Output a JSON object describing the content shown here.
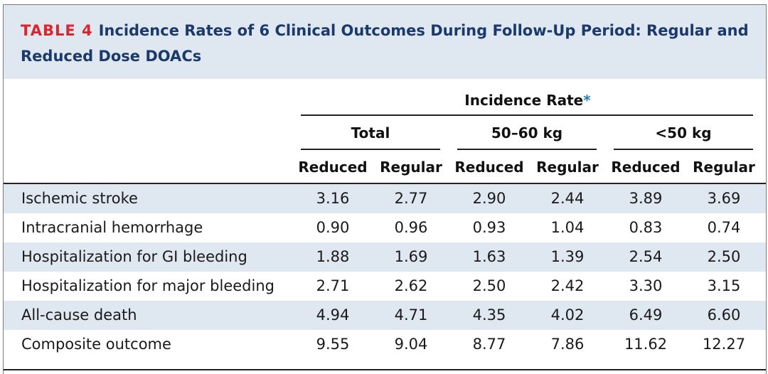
{
  "table": {
    "label": "TABLE 4",
    "title": "Incidence Rates of 6 Clinical Outcomes During Follow-Up Period: Regular and Reduced Dose DOACs",
    "group_header": "Incidence Rate",
    "group_marker": "*",
    "subgroups": [
      "Total",
      "50–60 kg",
      "<50 kg"
    ],
    "columns": [
      "Reduced",
      "Regular",
      "Reduced",
      "Regular",
      "Reduced",
      "Regular"
    ],
    "rows": [
      {
        "label": "Ischemic stroke",
        "values": [
          "3.16",
          "2.77",
          "2.90",
          "2.44",
          "3.89",
          "3.69"
        ]
      },
      {
        "label": "Intracranial hemorrhage",
        "values": [
          "0.90",
          "0.96",
          "0.93",
          "1.04",
          "0.83",
          "0.74"
        ]
      },
      {
        "label": "Hospitalization for GI bleeding",
        "values": [
          "1.88",
          "1.69",
          "1.63",
          "1.39",
          "2.54",
          "2.50"
        ]
      },
      {
        "label": "Hospitalization for major bleeding",
        "values": [
          "2.71",
          "2.62",
          "2.50",
          "2.42",
          "3.30",
          "3.15"
        ]
      },
      {
        "label": "All-cause death",
        "values": [
          "4.94",
          "4.71",
          "4.35",
          "4.02",
          "6.49",
          "6.60"
        ]
      },
      {
        "label": "Composite outcome",
        "values": [
          "9.55",
          "9.04",
          "8.77",
          "7.86",
          "11.62",
          "12.27"
        ]
      }
    ]
  },
  "colors": {
    "title_text": "#1b3a6b",
    "label_red": "#d7262e",
    "shade": "#dfe7f0",
    "asterisk": "#2a7ab8"
  }
}
